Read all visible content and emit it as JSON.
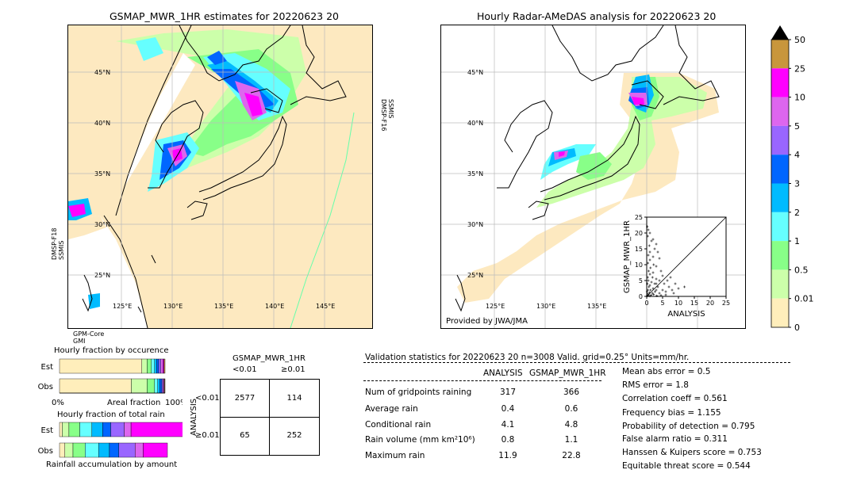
{
  "map_left": {
    "title": "GSMAP_MWR_1HR estimates for 20220623 20",
    "lat_labels": [
      "45°N",
      "40°N",
      "35°N",
      "30°N",
      "25°N"
    ],
    "lon_labels": [
      "125°E",
      "130°E",
      "135°E",
      "140°E",
      "145°E"
    ],
    "sensor_right": "DMSP-F16\nSSMIS",
    "sensor_left": "DMSP-F18\nSSMIS",
    "sensor_bottom": "GPM-Core\nGMI"
  },
  "map_right": {
    "title": "Hourly Radar-AMeDAS analysis for 20220623 20",
    "lat_labels": [
      "45°N",
      "40°N",
      "35°N",
      "30°N",
      "25°N"
    ],
    "lon_labels": [
      "125°E",
      "130°E",
      "135°E"
    ],
    "provider": "Provided by JWA/JMA"
  },
  "colorbar": {
    "labels": [
      "50",
      "25",
      "10",
      "5",
      "4",
      "3",
      "2",
      "1",
      "0.5",
      "0.01",
      "0"
    ],
    "colors": [
      "#c8963c",
      "#ff00ff",
      "#dd66ee",
      "#9966ff",
      "#0066ff",
      "#00bbff",
      "#66ffff",
      "#88ff88",
      "#ccffaa",
      "#ffeebb"
    ]
  },
  "chart_data": [
    {
      "type": "scatter",
      "xlabel": "ANALYSIS",
      "ylabel": "GSMAP_MWR_1HR",
      "xlim": [
        0,
        25
      ],
      "ylim": [
        0,
        25
      ],
      "xticks": [
        "0",
        "5",
        "10",
        "15",
        "20",
        "25"
      ],
      "yticks": [
        "0",
        "5",
        "10",
        "15",
        "20",
        "25"
      ],
      "points": [
        [
          0.2,
          22
        ],
        [
          0.5,
          21
        ],
        [
          1,
          20
        ],
        [
          0.3,
          19
        ],
        [
          2,
          18
        ],
        [
          1.5,
          17.5
        ],
        [
          0.8,
          16
        ],
        [
          3,
          16.5
        ],
        [
          2.5,
          15
        ],
        [
          1,
          14
        ],
        [
          0.5,
          13
        ],
        [
          3.5,
          14
        ],
        [
          2,
          12.5
        ],
        [
          1,
          11.5
        ],
        [
          4,
          12
        ],
        [
          0.4,
          10.5
        ],
        [
          2.2,
          10
        ],
        [
          1.2,
          9
        ],
        [
          3,
          9.5
        ],
        [
          0.6,
          8
        ],
        [
          2,
          7.5
        ],
        [
          1,
          7
        ],
        [
          4.5,
          8
        ],
        [
          0.3,
          6
        ],
        [
          1.8,
          6
        ],
        [
          3,
          5.5
        ],
        [
          0.5,
          5
        ],
        [
          1.5,
          4.5
        ],
        [
          2.5,
          4
        ],
        [
          0.2,
          4
        ],
        [
          1,
          3.5
        ],
        [
          3.5,
          3
        ],
        [
          0.7,
          3
        ],
        [
          2,
          2.5
        ],
        [
          0.4,
          2
        ],
        [
          1.2,
          2
        ],
        [
          3,
          2
        ],
        [
          0.1,
          1.5
        ],
        [
          0.9,
          1.2
        ],
        [
          1.8,
          1
        ],
        [
          2.6,
          1.5
        ],
        [
          0.3,
          0.8
        ],
        [
          0.6,
          0.5
        ],
        [
          1.4,
          0.4
        ],
        [
          2.2,
          0.6
        ],
        [
          0.2,
          0.2
        ],
        [
          1,
          0.1
        ],
        [
          4,
          1
        ],
        [
          5,
          2
        ],
        [
          6,
          1.5
        ],
        [
          7,
          3
        ],
        [
          8,
          2
        ],
        [
          5.5,
          4
        ],
        [
          6.5,
          5
        ],
        [
          7.5,
          6
        ],
        [
          9,
          4
        ],
        [
          10,
          2.5
        ],
        [
          11.9,
          3
        ],
        [
          8.5,
          1
        ],
        [
          6,
          0.5
        ],
        [
          4.5,
          0.3
        ],
        [
          3.2,
          0.2
        ],
        [
          5,
          6.5
        ],
        [
          4,
          5
        ],
        [
          3,
          4
        ]
      ]
    },
    {
      "type": "bar",
      "title": "Hourly fraction by occurence",
      "categories": [
        "Est",
        "Obs"
      ],
      "xlabel": "Areal fraction",
      "xticks": [
        "0%",
        "100%"
      ],
      "series": [
        {
          "values": [
            0.78,
            0.68
          ]
        },
        {
          "values": [
            0.05,
            0.15
          ]
        },
        {
          "values": [
            0.04,
            0.07
          ]
        },
        {
          "values": [
            0.03,
            0.03
          ]
        },
        {
          "values": [
            0.02,
            0.02
          ]
        },
        {
          "values": [
            0.02,
            0.02
          ]
        },
        {
          "values": [
            0.02,
            0.01
          ]
        },
        {
          "values": [
            0.02,
            0.01
          ]
        },
        {
          "values": [
            0.01,
            0.005
          ]
        },
        {
          "values": [
            0.01,
            0.005
          ]
        }
      ]
    },
    {
      "type": "bar",
      "title": "Hourly fraction of total rain",
      "categories": [
        "Est",
        "Obs"
      ],
      "xlabel": "Rainfall accumulation by amount",
      "series": [
        {
          "values": [
            0.02,
            0.04
          ]
        },
        {
          "values": [
            0.05,
            0.06
          ]
        },
        {
          "values": [
            0.08,
            0.09
          ]
        },
        {
          "values": [
            0.09,
            0.1
          ]
        },
        {
          "values": [
            0.08,
            0.08
          ]
        },
        {
          "values": [
            0.06,
            0.07
          ]
        },
        {
          "values": [
            0.1,
            0.12
          ]
        },
        {
          "values": [
            0.05,
            0.06
          ]
        },
        {
          "values": [
            0.47,
            0.18
          ]
        }
      ]
    },
    {
      "type": "table",
      "title": "GSMAP_MWR_1HR",
      "col_headers": [
        "<0.01",
        "≥0.01"
      ],
      "row_headers": [
        "<0.01",
        "≥0.01"
      ],
      "row_axis": "ANALYSIS",
      "cells": [
        [
          "2577",
          "114"
        ],
        [
          "65",
          "252"
        ]
      ]
    }
  ],
  "stats": {
    "header": "Validation statistics for 20220623 20  n=3008 Valid. grid=0.25° Units=mm/hr.",
    "col_analysis": "ANALYSIS",
    "col_gsmap": "GSMAP_MWR_1HR",
    "rows": [
      {
        "label": "Num of gridpoints raining",
        "analysis": "317",
        "gsmap": "366"
      },
      {
        "label": "Average rain",
        "analysis": "0.4",
        "gsmap": "0.6"
      },
      {
        "label": "Conditional rain",
        "analysis": "4.1",
        "gsmap": "4.8"
      },
      {
        "label": "Rain volume (mm km²10⁶)",
        "analysis": "0.8",
        "gsmap": "1.1"
      },
      {
        "label": "Maximum rain",
        "analysis": "11.9",
        "gsmap": "22.8"
      }
    ],
    "scores": [
      "Mean abs error =    0.5",
      "RMS error =    1.8",
      "Correlation coeff =  0.561",
      "Frequency bias =  1.155",
      "Probability of detection =  0.795",
      "False alarm ratio =  0.311",
      "Hanssen & Kuipers score =  0.753",
      "Equitable threat score =  0.544"
    ]
  }
}
